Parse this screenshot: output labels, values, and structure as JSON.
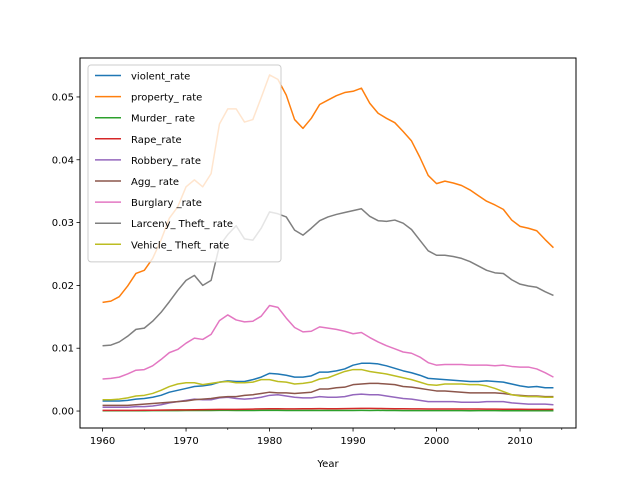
{
  "chart_data": {
    "type": "line",
    "title": "",
    "xlabel": "Year",
    "ylabel": "",
    "xlim": [
      1957.3,
      2016.7
    ],
    "ylim": [
      -0.0027,
      0.0562
    ],
    "xticks": [
      1960,
      1970,
      1980,
      1990,
      2000,
      2010
    ],
    "xtick_labels": [
      "1960",
      "1970",
      "1980",
      "1990",
      "2000",
      "2010"
    ],
    "yticks": [
      0.0,
      0.01,
      0.02,
      0.03,
      0.04,
      0.05
    ],
    "ytick_labels": [
      "0.00",
      "0.01",
      "0.02",
      "0.03",
      "0.04",
      "0.05"
    ],
    "grid": false,
    "legend_position": "top-left",
    "x": [
      1960,
      1961,
      1962,
      1963,
      1964,
      1965,
      1966,
      1967,
      1968,
      1969,
      1970,
      1971,
      1972,
      1973,
      1974,
      1975,
      1976,
      1977,
      1978,
      1979,
      1980,
      1981,
      1982,
      1983,
      1984,
      1985,
      1986,
      1987,
      1988,
      1989,
      1990,
      1991,
      1992,
      1993,
      1994,
      1995,
      1996,
      1997,
      1998,
      1999,
      2000,
      2001,
      2002,
      2003,
      2004,
      2005,
      2006,
      2007,
      2008,
      2009,
      2010,
      2011,
      2012,
      2013,
      2014
    ],
    "series": [
      {
        "name": "violent_rate",
        "color": "#1f77b4",
        "values": [
          0.0016,
          0.0016,
          0.0016,
          0.0017,
          0.0019,
          0.002,
          0.0022,
          0.0025,
          0.003,
          0.0033,
          0.0036,
          0.0039,
          0.004,
          0.0042,
          0.0046,
          0.0048,
          0.0047,
          0.0047,
          0.005,
          0.0054,
          0.006,
          0.0059,
          0.0057,
          0.0054,
          0.0054,
          0.0056,
          0.0062,
          0.0062,
          0.0064,
          0.0067,
          0.0073,
          0.0076,
          0.0076,
          0.0075,
          0.0072,
          0.0068,
          0.0064,
          0.0061,
          0.0057,
          0.0052,
          0.0051,
          0.005,
          0.0049,
          0.0048,
          0.0047,
          0.0047,
          0.0048,
          0.0047,
          0.0046,
          0.0043,
          0.004,
          0.0038,
          0.0039,
          0.0037,
          0.0037
        ]
      },
      {
        "name": "property_ rate",
        "color": "#ff7f0e",
        "values": [
          0.0173,
          0.0175,
          0.0182,
          0.0199,
          0.0219,
          0.0224,
          0.0243,
          0.0272,
          0.0307,
          0.0325,
          0.0357,
          0.0368,
          0.0357,
          0.0378,
          0.0457,
          0.0481,
          0.0481,
          0.046,
          0.0464,
          0.0499,
          0.0535,
          0.0528,
          0.0503,
          0.0464,
          0.045,
          0.0466,
          0.0488,
          0.0495,
          0.0502,
          0.0507,
          0.0509,
          0.0514,
          0.049,
          0.0474,
          0.0466,
          0.0459,
          0.0445,
          0.043,
          0.0404,
          0.0375,
          0.0362,
          0.0366,
          0.0363,
          0.0359,
          0.0352,
          0.0343,
          0.0334,
          0.0328,
          0.0321,
          0.0304,
          0.0294,
          0.0291,
          0.0287,
          0.0273,
          0.026
        ]
      },
      {
        "name": "Murder_ rate",
        "color": "#2ca02c",
        "values": [
          5e-05,
          5e-05,
          5e-05,
          5e-05,
          5e-05,
          5e-05,
          6e-05,
          6e-05,
          7e-05,
          7e-05,
          8e-05,
          9e-05,
          9e-05,
          9e-05,
          0.0001,
          0.0001,
          9e-05,
          9e-05,
          9e-05,
          0.0001,
          0.0001,
          0.0001,
          9e-05,
          8e-05,
          8e-05,
          8e-05,
          9e-05,
          8e-05,
          8e-05,
          9e-05,
          9e-05,
          0.0001,
          9e-05,
          0.0001,
          9e-05,
          8e-05,
          7e-05,
          7e-05,
          6e-05,
          6e-05,
          6e-05,
          6e-05,
          6e-05,
          6e-05,
          5e-05,
          6e-05,
          6e-05,
          6e-05,
          5e-05,
          5e-05,
          5e-05,
          5e-05,
          5e-05,
          5e-05,
          5e-05
        ]
      },
      {
        "name": "Rape_rate",
        "color": "#d62728",
        "values": [
          0.0001,
          0.0001,
          0.0001,
          0.0001,
          0.0001,
          0.00012,
          0.00013,
          0.00014,
          0.00016,
          0.00018,
          0.00019,
          0.0002,
          0.00023,
          0.00025,
          0.00026,
          0.00026,
          0.00027,
          0.00029,
          0.00031,
          0.00035,
          0.00037,
          0.00036,
          0.00034,
          0.00034,
          0.00036,
          0.00037,
          0.00038,
          0.00037,
          0.00037,
          0.00038,
          0.00041,
          0.00042,
          0.00043,
          0.00041,
          0.00039,
          0.00037,
          0.00036,
          0.00035,
          0.00034,
          0.00033,
          0.00032,
          0.00032,
          0.00033,
          0.00032,
          0.00032,
          0.00032,
          0.00031,
          0.0003,
          0.00029,
          0.00029,
          0.00028,
          0.00027,
          0.00027,
          0.00026,
          0.00026
        ]
      },
      {
        "name": "Robbery_ rate",
        "color": "#9467bd",
        "values": [
          0.0006,
          0.0006,
          0.0006,
          0.0006,
          0.0007,
          0.0007,
          0.0008,
          0.001,
          0.0013,
          0.0015,
          0.0017,
          0.0019,
          0.0018,
          0.0018,
          0.0021,
          0.0022,
          0.002,
          0.0019,
          0.002,
          0.0022,
          0.0025,
          0.0026,
          0.0024,
          0.0022,
          0.0021,
          0.0021,
          0.0023,
          0.0022,
          0.0022,
          0.0023,
          0.0026,
          0.0027,
          0.0026,
          0.0026,
          0.0024,
          0.0022,
          0.002,
          0.0019,
          0.0017,
          0.0015,
          0.0015,
          0.0015,
          0.0015,
          0.0014,
          0.0014,
          0.0014,
          0.0015,
          0.0015,
          0.0015,
          0.0013,
          0.0012,
          0.0011,
          0.0011,
          0.0011,
          0.001
        ]
      },
      {
        "name": "Agg_ rate",
        "color": "#8c564b",
        "values": [
          0.0009,
          0.0009,
          0.0009,
          0.0009,
          0.001,
          0.0011,
          0.0012,
          0.0013,
          0.0014,
          0.0015,
          0.0016,
          0.0018,
          0.0019,
          0.002,
          0.0022,
          0.0023,
          0.0023,
          0.0025,
          0.0026,
          0.0028,
          0.003,
          0.0029,
          0.0029,
          0.0028,
          0.0029,
          0.003,
          0.0035,
          0.0035,
          0.0037,
          0.0038,
          0.0042,
          0.0043,
          0.0044,
          0.0044,
          0.0043,
          0.0042,
          0.0039,
          0.0038,
          0.0036,
          0.0034,
          0.0032,
          0.0032,
          0.0031,
          0.003,
          0.0029,
          0.0029,
          0.0029,
          0.0029,
          0.0028,
          0.0026,
          0.0025,
          0.0024,
          0.0024,
          0.0023,
          0.0023
        ]
      },
      {
        "name": "Burglary _rate",
        "color": "#e377c2",
        "values": [
          0.0051,
          0.0052,
          0.0054,
          0.0059,
          0.0065,
          0.0066,
          0.0072,
          0.0082,
          0.0093,
          0.0098,
          0.0108,
          0.0116,
          0.0114,
          0.0122,
          0.0144,
          0.0153,
          0.0145,
          0.0142,
          0.0143,
          0.0151,
          0.0168,
          0.0165,
          0.0148,
          0.0133,
          0.0126,
          0.0127,
          0.0134,
          0.0132,
          0.013,
          0.0127,
          0.0123,
          0.0125,
          0.0117,
          0.011,
          0.0104,
          0.0099,
          0.0094,
          0.0092,
          0.0086,
          0.0077,
          0.0073,
          0.0074,
          0.0074,
          0.0074,
          0.0073,
          0.0073,
          0.0073,
          0.0072,
          0.0073,
          0.0071,
          0.007,
          0.007,
          0.0067,
          0.0061,
          0.0054
        ]
      },
      {
        "name": "Larceny_ Theft_ rate",
        "color": "#7f7f7f",
        "values": [
          0.0104,
          0.0105,
          0.011,
          0.0119,
          0.013,
          0.0132,
          0.0143,
          0.0157,
          0.0174,
          0.0192,
          0.0208,
          0.0216,
          0.02,
          0.0208,
          0.0263,
          0.0281,
          0.0295,
          0.0274,
          0.0272,
          0.0291,
          0.0317,
          0.0314,
          0.0309,
          0.0288,
          0.028,
          0.0291,
          0.0303,
          0.0309,
          0.0313,
          0.0316,
          0.0319,
          0.0322,
          0.031,
          0.0303,
          0.0302,
          0.0304,
          0.0299,
          0.0289,
          0.0272,
          0.0255,
          0.0248,
          0.0248,
          0.0246,
          0.0243,
          0.0238,
          0.0231,
          0.0224,
          0.022,
          0.0219,
          0.0209,
          0.0202,
          0.0199,
          0.0197,
          0.019,
          0.0184
        ]
      },
      {
        "name": "Vehicle_ Theft_ rate",
        "color": "#bcbd22",
        "values": [
          0.0018,
          0.0018,
          0.0019,
          0.0021,
          0.0024,
          0.0025,
          0.0028,
          0.0033,
          0.0039,
          0.0043,
          0.0045,
          0.0045,
          0.0042,
          0.0044,
          0.0046,
          0.0047,
          0.0045,
          0.0045,
          0.0046,
          0.005,
          0.005,
          0.0047,
          0.0046,
          0.0043,
          0.0044,
          0.0046,
          0.0051,
          0.0053,
          0.0058,
          0.0063,
          0.0066,
          0.0066,
          0.0063,
          0.0061,
          0.0059,
          0.0056,
          0.0053,
          0.005,
          0.0046,
          0.0042,
          0.0041,
          0.0043,
          0.0043,
          0.0043,
          0.0042,
          0.0042,
          0.004,
          0.0036,
          0.0031,
          0.0026,
          0.0024,
          0.0023,
          0.0023,
          0.0022,
          0.0022
        ]
      }
    ]
  }
}
